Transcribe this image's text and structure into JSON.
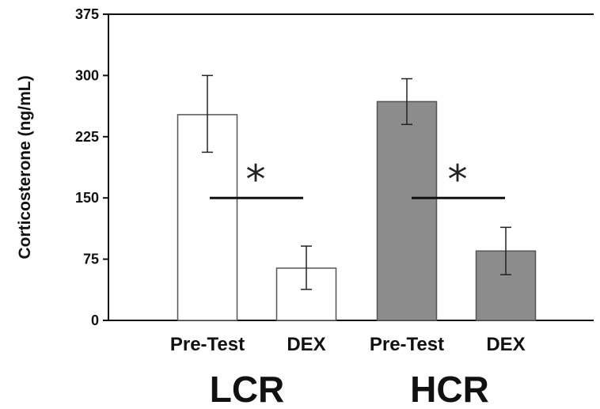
{
  "chart_data": {
    "type": "bar",
    "title": "",
    "xlabel": "",
    "ylabel": "Corticosterone (ng/mL)",
    "ylim": [
      0,
      375
    ],
    "yticks": [
      0,
      75,
      150,
      225,
      300,
      375
    ],
    "grid": false,
    "groups": [
      {
        "label": "LCR",
        "fill": "#ffffff",
        "bars": [
          {
            "category": "Pre-Test",
            "value": 252,
            "err_low": 206,
            "err_high": 300
          },
          {
            "category": "DEX",
            "value": 64,
            "err_low": 38,
            "err_high": 91
          }
        ],
        "significance": {
          "symbol": "*",
          "y": 150
        }
      },
      {
        "label": "HCR",
        "fill": "#8c8c8c",
        "bars": [
          {
            "category": "Pre-Test",
            "value": 268,
            "err_low": 240,
            "err_high": 296
          },
          {
            "category": "DEX",
            "value": 85,
            "err_low": 56,
            "err_high": 114
          }
        ],
        "significance": {
          "symbol": "*",
          "y": 150
        }
      }
    ]
  }
}
